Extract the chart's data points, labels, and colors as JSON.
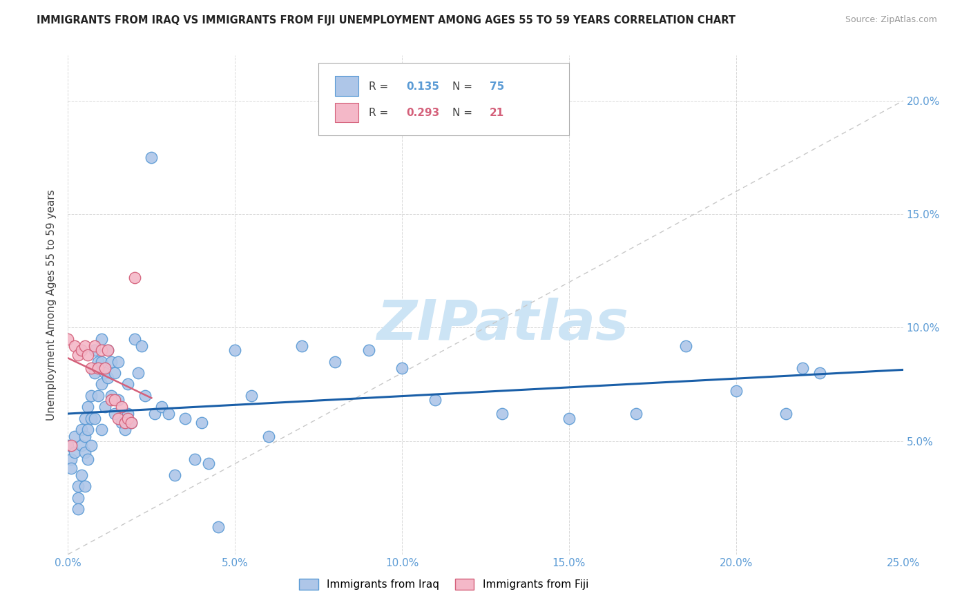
{
  "title": "IMMIGRANTS FROM IRAQ VS IMMIGRANTS FROM FIJI UNEMPLOYMENT AMONG AGES 55 TO 59 YEARS CORRELATION CHART",
  "source": "Source: ZipAtlas.com",
  "ylabel": "Unemployment Among Ages 55 to 59 years",
  "xlim": [
    0.0,
    0.25
  ],
  "ylim": [
    0.0,
    0.22
  ],
  "ytick_labels": [
    "5.0%",
    "10.0%",
    "15.0%",
    "20.0%"
  ],
  "xtick_labels": [
    "0.0%",
    "5.0%",
    "10.0%",
    "15.0%",
    "20.0%",
    "25.0%"
  ],
  "iraq_color": "#aec6e8",
  "iraq_edge_color": "#5b9bd5",
  "fiji_color": "#f4b8c8",
  "fiji_edge_color": "#d4607a",
  "iraq_R": "0.135",
  "iraq_N": "75",
  "fiji_R": "0.293",
  "fiji_N": "21",
  "iraq_line_color": "#1a5fa8",
  "fiji_line_color": "#d4607a",
  "diagonal_color": "#c8c8c8",
  "watermark": "ZIPatlas",
  "watermark_color": "#cce4f5",
  "tick_color": "#5b9bd5",
  "iraq_x": [
    0.0,
    0.001,
    0.001,
    0.002,
    0.002,
    0.003,
    0.003,
    0.003,
    0.004,
    0.004,
    0.004,
    0.005,
    0.005,
    0.005,
    0.005,
    0.006,
    0.006,
    0.006,
    0.007,
    0.007,
    0.007,
    0.008,
    0.008,
    0.008,
    0.009,
    0.009,
    0.01,
    0.01,
    0.01,
    0.01,
    0.011,
    0.011,
    0.012,
    0.012,
    0.013,
    0.013,
    0.014,
    0.014,
    0.015,
    0.015,
    0.016,
    0.017,
    0.018,
    0.018,
    0.019,
    0.02,
    0.021,
    0.022,
    0.023,
    0.025,
    0.026,
    0.028,
    0.03,
    0.032,
    0.035,
    0.038,
    0.04,
    0.042,
    0.045,
    0.05,
    0.055,
    0.06,
    0.07,
    0.08,
    0.09,
    0.1,
    0.11,
    0.13,
    0.15,
    0.17,
    0.185,
    0.2,
    0.215,
    0.22,
    0.225
  ],
  "iraq_y": [
    0.048,
    0.042,
    0.038,
    0.052,
    0.045,
    0.03,
    0.025,
    0.02,
    0.055,
    0.048,
    0.035,
    0.06,
    0.052,
    0.045,
    0.03,
    0.065,
    0.055,
    0.042,
    0.07,
    0.06,
    0.048,
    0.09,
    0.08,
    0.06,
    0.085,
    0.07,
    0.095,
    0.085,
    0.075,
    0.055,
    0.08,
    0.065,
    0.09,
    0.078,
    0.085,
    0.07,
    0.08,
    0.062,
    0.085,
    0.068,
    0.058,
    0.055,
    0.075,
    0.062,
    0.058,
    0.095,
    0.08,
    0.092,
    0.07,
    0.175,
    0.062,
    0.065,
    0.062,
    0.035,
    0.06,
    0.042,
    0.058,
    0.04,
    0.012,
    0.09,
    0.07,
    0.052,
    0.092,
    0.085,
    0.09,
    0.082,
    0.068,
    0.062,
    0.06,
    0.062,
    0.092,
    0.072,
    0.062,
    0.082,
    0.08
  ],
  "fiji_x": [
    0.0,
    0.001,
    0.002,
    0.003,
    0.004,
    0.005,
    0.006,
    0.007,
    0.008,
    0.009,
    0.01,
    0.011,
    0.012,
    0.013,
    0.014,
    0.015,
    0.016,
    0.017,
    0.018,
    0.019,
    0.02
  ],
  "fiji_y": [
    0.095,
    0.048,
    0.092,
    0.088,
    0.09,
    0.092,
    0.088,
    0.082,
    0.092,
    0.082,
    0.09,
    0.082,
    0.09,
    0.068,
    0.068,
    0.06,
    0.065,
    0.058,
    0.06,
    0.058,
    0.122
  ]
}
